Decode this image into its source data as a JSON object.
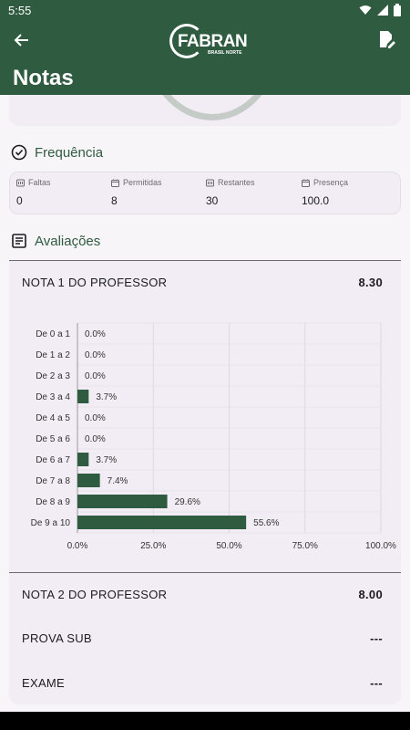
{
  "status_bar": {
    "time": "5:55"
  },
  "app_bar": {
    "logo_text": "FABRAN",
    "logo_subtitle": "BRASIL NORTE"
  },
  "page": {
    "title": "Notas"
  },
  "frequencia": {
    "title": "Frequência",
    "columns": [
      {
        "label": "Faltas",
        "value": "0"
      },
      {
        "label": "Permitidas",
        "value": "8"
      },
      {
        "label": "Restantes",
        "value": "30"
      },
      {
        "label": "Presença",
        "value": "100.0"
      }
    ]
  },
  "avaliacoes": {
    "title": "Avaliações",
    "items": [
      {
        "name": "NOTA 1 DO PROFESSOR",
        "score": "8.30"
      },
      {
        "name": "NOTA 2 DO PROFESSOR",
        "score": "8.00"
      },
      {
        "name": "PROVA SUB",
        "score": "---"
      },
      {
        "name": "EXAME",
        "score": "---"
      }
    ]
  },
  "chart_data": {
    "type": "bar",
    "orientation": "horizontal",
    "categories": [
      "De 0 a 1",
      "De 1 a 2",
      "De 2 a 3",
      "De 3 a 4",
      "De 4 a 5",
      "De 5 a 6",
      "De 6 a 7",
      "De 7 a 8",
      "De 8 a 9",
      "De 9 a 10"
    ],
    "values": [
      0.0,
      0.0,
      0.0,
      3.7,
      0.0,
      0.0,
      3.7,
      7.4,
      29.6,
      55.6
    ],
    "value_labels": [
      "0.0%",
      "0.0%",
      "0.0%",
      "3.7%",
      "0.0%",
      "0.0%",
      "3.7%",
      "7.4%",
      "29.6%",
      "55.6%"
    ],
    "x_ticks": [
      "0.0%",
      "25.0%",
      "50.0%",
      "75.0%",
      "100.0%"
    ],
    "xlim": [
      0,
      100
    ],
    "bar_color": "#2f5b40",
    "grid": true
  },
  "colors": {
    "primary": "#2f5b40",
    "surface": "#f2edf4",
    "background": "#f8f5f8"
  }
}
